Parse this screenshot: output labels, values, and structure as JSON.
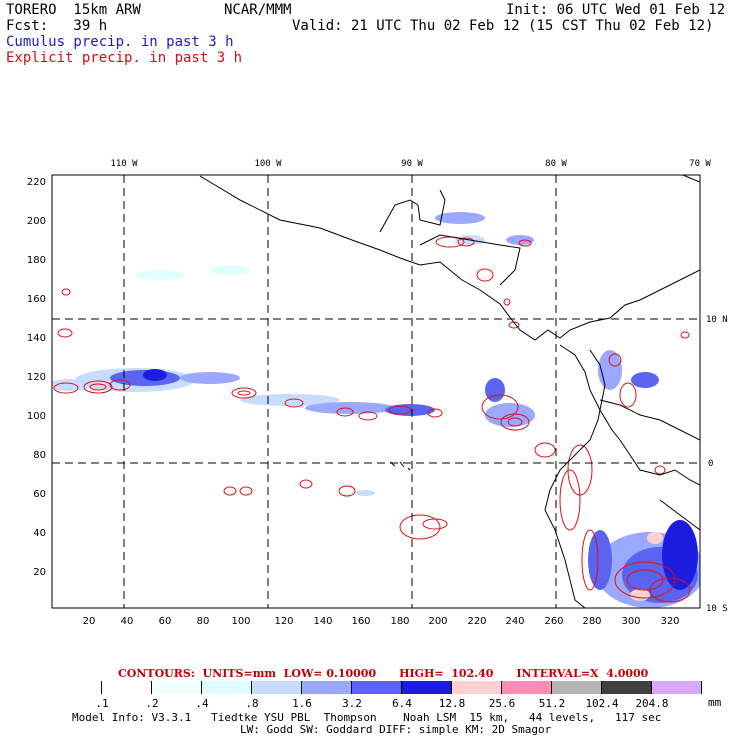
{
  "header": {
    "model": "TORERO  15km ARW",
    "center": "NCAR/MMM",
    "init": "Init: 06 UTC Wed 01 Feb 12",
    "fcst": "Fcst:   39 h",
    "valid": "Valid: 21 UTC Thu 02 Feb 12 (15 CST Thu 02 Feb 12)",
    "cumulus": "Cumulus precip. in past 3 h",
    "explicit": "Explicit precip. in past 3 h"
  },
  "map": {
    "top_lon_labels": [
      "110 W",
      "100 W",
      "90 W",
      "80 W",
      "70 W"
    ],
    "right_lat_labels": [
      "10 N",
      "0",
      "10 S"
    ],
    "left_ticks": [
      "220",
      "200",
      "180",
      "160",
      "140",
      "120",
      "100",
      "80",
      "60",
      "40",
      "20"
    ],
    "bottom_ticks": [
      "20",
      "40",
      "60",
      "80",
      "100",
      "120",
      "140",
      "160",
      "180",
      "200",
      "220",
      "240",
      "260",
      "280",
      "300",
      "320"
    ]
  },
  "contours_text": "CONTOURS:  UNITS=mm  LOW= 0.10000      HIGH=  102.40      INTERVAL=X  4.0000",
  "legend": {
    "labels": [
      ".1",
      ".2",
      ".4",
      ".8",
      "1.6",
      "3.2",
      "6.4",
      "12.8",
      "25.6",
      "51.2",
      "102.4",
      "204.8"
    ],
    "unit": "mm",
    "colors": [
      "#ffffff",
      "#ffffff",
      "#f0ffff",
      "#e0ffff",
      "#c8dcff",
      "#9aa8ff",
      "#5a64f0",
      "#1c1ce0",
      "#ffd0d0",
      "#ff8cb4",
      "#b4b4b4",
      "#404040",
      "#d8a8ff"
    ]
  },
  "footer": {
    "line1": "Model Info: V3.3.1   Tiedtke YSU PBL  Thompson    Noah LSM  15 km,   44 levels,   117 sec",
    "line2": "LW: Godd SW: Goddard DIFF: simple KM: 2D Smagor"
  }
}
